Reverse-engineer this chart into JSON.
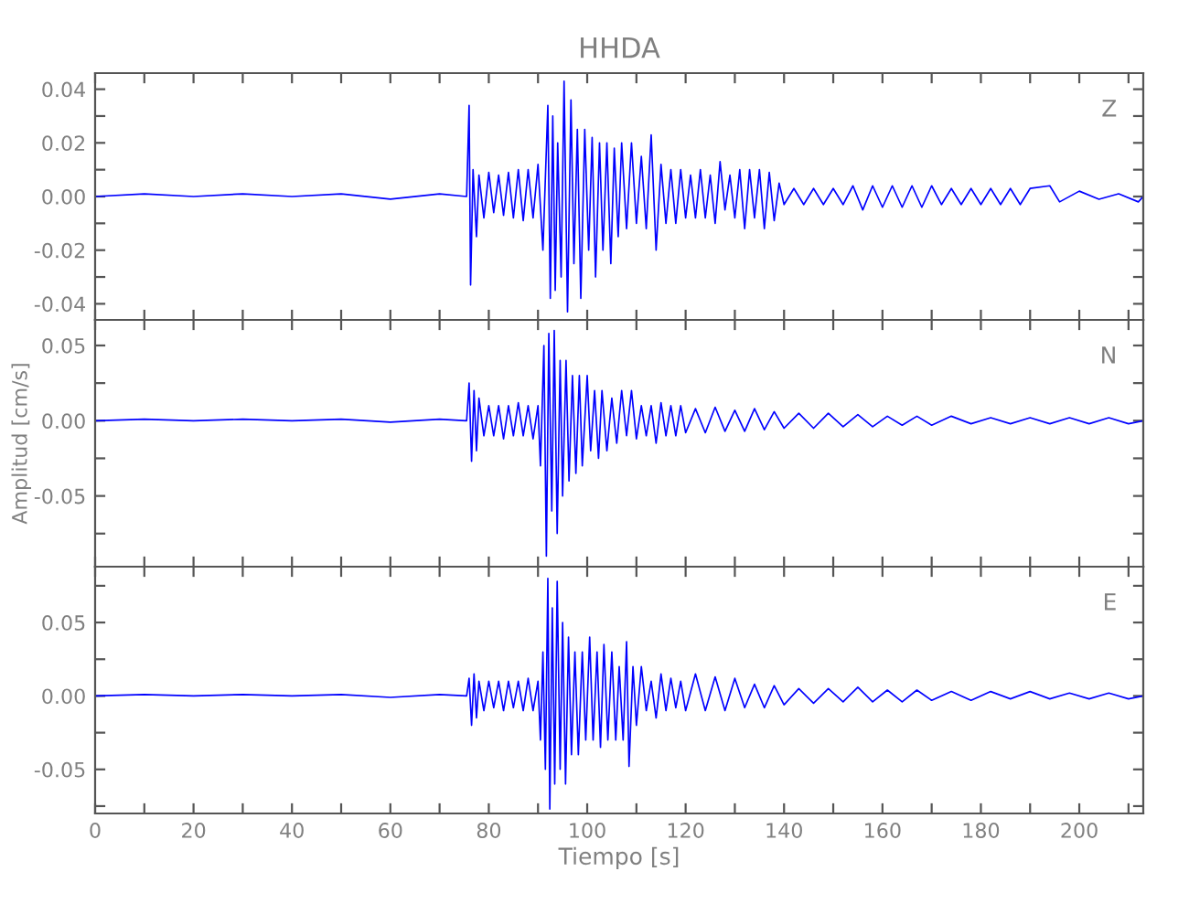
{
  "chart_data": [
    {
      "type": "line",
      "title": "HHDA",
      "tick_labels": "y",
      "grid": false,
      "legend": false,
      "marker": "none",
      "line_style": "solid",
      "xlim": [
        0,
        213
      ],
      "xticks": [
        0,
        {
          "value": 10,
          "label": null
        },
        20,
        {
          "value": 30,
          "label": null
        },
        40,
        {
          "value": 50,
          "label": null
        },
        60,
        {
          "value": 70,
          "label": null
        },
        80,
        {
          "value": 90,
          "label": null
        },
        100,
        {
          "value": 110,
          "label": null
        },
        120,
        {
          "value": 130,
          "label": null
        },
        140,
        {
          "value": 150,
          "label": null
        },
        160,
        {
          "value": 170,
          "label": null
        },
        180,
        {
          "value": 190,
          "label": null
        },
        200,
        {
          "value": 210,
          "label": null
        }
      ],
      "ylim": [
        -0.046,
        0.046
      ],
      "yticks": [
        {
          "value": -0.04,
          "label": "-0.04"
        },
        {
          "value": -0.03,
          "label": null
        },
        {
          "value": -0.02,
          "label": "-0.02"
        },
        {
          "value": -0.01,
          "label": null
        },
        {
          "value": 0,
          "label": "0.00"
        },
        {
          "value": 0.01,
          "label": null
        },
        {
          "value": 0.02,
          "label": "0.02"
        },
        {
          "value": 0.03,
          "label": null
        },
        {
          "value": 0.04,
          "label": "0.04"
        }
      ],
      "series": [
        {
          "name": "Z",
          "color": "#0000ff",
          "x": [
            0,
            10,
            20,
            30,
            40,
            50,
            60,
            70,
            75.5,
            76,
            76.3,
            76.8,
            77.5,
            78,
            79,
            80,
            81,
            82,
            83,
            84,
            85,
            86,
            87,
            88,
            89,
            90,
            91,
            92,
            92.5,
            93,
            93.5,
            94,
            94.7,
            95.3,
            96,
            96.7,
            97.3,
            98,
            98.7,
            99.5,
            100.3,
            101,
            101.7,
            102.5,
            103.2,
            104,
            104.8,
            105.5,
            106.3,
            107,
            108,
            109,
            110,
            111,
            112,
            113,
            114,
            115,
            116,
            117,
            118,
            119,
            120,
            121,
            122,
            123,
            124,
            125,
            126,
            127,
            128,
            129,
            130,
            131,
            132,
            133,
            134,
            135,
            136,
            137,
            138,
            139,
            140,
            142,
            144,
            146,
            148,
            150,
            152,
            154,
            156,
            158,
            160,
            162,
            164,
            166,
            168,
            170,
            172,
            174,
            176,
            178,
            180,
            182,
            184,
            186,
            188,
            190,
            194,
            196,
            200,
            204,
            208,
            212,
            213
          ],
          "values": [
            0,
            0.001,
            0,
            0.001,
            0,
            0.001,
            -0.001,
            0.001,
            0,
            0.034,
            -0.033,
            0.01,
            -0.015,
            0.008,
            -0.008,
            0.009,
            -0.006,
            0.008,
            -0.007,
            0.009,
            -0.008,
            0.01,
            -0.009,
            0.01,
            -0.008,
            0.012,
            -0.02,
            0.034,
            -0.038,
            0.03,
            -0.035,
            0.02,
            -0.03,
            0.043,
            -0.043,
            0.036,
            -0.025,
            0.025,
            -0.038,
            0.025,
            -0.02,
            0.022,
            -0.03,
            0.02,
            -0.02,
            0.02,
            -0.025,
            0.018,
            -0.015,
            0.02,
            -0.012,
            0.02,
            -0.01,
            0.015,
            -0.012,
            0.023,
            -0.02,
            0.012,
            -0.01,
            0.01,
            -0.01,
            0.01,
            -0.008,
            0.008,
            -0.008,
            0.01,
            -0.008,
            0.008,
            -0.01,
            0.013,
            -0.005,
            0.008,
            -0.008,
            0.01,
            -0.012,
            0.01,
            -0.008,
            0.01,
            -0.012,
            0.009,
            -0.009,
            0.005,
            -0.003,
            0.003,
            -0.003,
            0.003,
            -0.003,
            0.003,
            -0.003,
            0.004,
            -0.005,
            0.004,
            -0.004,
            0.004,
            -0.004,
            0.004,
            -0.004,
            0.004,
            -0.003,
            0.003,
            -0.003,
            0.003,
            -0.003,
            0.003,
            -0.003,
            0.003,
            -0.003,
            0.003,
            0.004,
            -0.002,
            0.002,
            -0.001,
            0.001,
            -0.002,
            0
          ]
        }
      ]
    },
    {
      "type": "line",
      "ylabel": "Amplitud [cm/s]",
      "tick_labels": "y",
      "grid": false,
      "legend": false,
      "marker": "none",
      "line_style": "solid",
      "xlim": [
        0,
        213
      ],
      "xticks": [
        0,
        {
          "value": 10,
          "label": null
        },
        20,
        {
          "value": 30,
          "label": null
        },
        40,
        {
          "value": 50,
          "label": null
        },
        60,
        {
          "value": 70,
          "label": null
        },
        80,
        {
          "value": 90,
          "label": null
        },
        100,
        {
          "value": 110,
          "label": null
        },
        120,
        {
          "value": 130,
          "label": null
        },
        140,
        {
          "value": 150,
          "label": null
        },
        160,
        {
          "value": 170,
          "label": null
        },
        180,
        {
          "value": 190,
          "label": null
        },
        200,
        {
          "value": 210,
          "label": null
        }
      ],
      "ylim": [
        -0.097,
        0.067
      ],
      "yticks": [
        {
          "value": -0.075,
          "label": null
        },
        {
          "value": -0.05,
          "label": "-0.05"
        },
        {
          "value": -0.025,
          "label": null
        },
        {
          "value": 0,
          "label": "0.00"
        },
        {
          "value": 0.025,
          "label": null
        },
        {
          "value": 0.05,
          "label": "0.05"
        }
      ],
      "series": [
        {
          "name": "N",
          "color": "#0000ff",
          "x": [
            0,
            10,
            20,
            30,
            40,
            50,
            60,
            70,
            75.5,
            76,
            76.5,
            77,
            77.5,
            78,
            79,
            80,
            81,
            82,
            83,
            84,
            85,
            86,
            87,
            88,
            89,
            90,
            90.5,
            91.2,
            91.7,
            92.2,
            92.8,
            93.3,
            93.9,
            94.5,
            95,
            95.7,
            96.3,
            97,
            97.7,
            98.4,
            99,
            100,
            100.7,
            101.5,
            102.3,
            103,
            104,
            105,
            106,
            107,
            108,
            109,
            110,
            111,
            112,
            113,
            114,
            115,
            116,
            117,
            118,
            119,
            120,
            122,
            124,
            126,
            128,
            130,
            132,
            134,
            136,
            138,
            140,
            143,
            146,
            149,
            152,
            155,
            158,
            161,
            164,
            167,
            170,
            174,
            178,
            182,
            186,
            190,
            194,
            198,
            202,
            206,
            210,
            213
          ],
          "values": [
            0,
            0.001,
            0,
            0.001,
            0,
            0.001,
            -0.001,
            0.001,
            0,
            0.025,
            -0.027,
            0.02,
            -0.02,
            0.015,
            -0.01,
            0.01,
            -0.01,
            0.01,
            -0.012,
            0.01,
            -0.01,
            0.012,
            -0.01,
            0.01,
            -0.012,
            0.01,
            -0.03,
            0.05,
            -0.09,
            0.058,
            -0.06,
            0.06,
            -0.075,
            0.04,
            -0.05,
            0.04,
            -0.04,
            0.03,
            -0.035,
            0.03,
            -0.03,
            0.03,
            -0.02,
            0.02,
            -0.025,
            0.02,
            -0.02,
            0.015,
            -0.015,
            0.02,
            -0.01,
            0.02,
            -0.012,
            0.01,
            -0.01,
            0.01,
            -0.015,
            0.012,
            -0.01,
            0.01,
            -0.01,
            0.01,
            -0.008,
            0.008,
            -0.008,
            0.009,
            -0.007,
            0.007,
            -0.007,
            0.008,
            -0.006,
            0.006,
            -0.005,
            0.005,
            -0.005,
            0.005,
            -0.004,
            0.004,
            -0.004,
            0.003,
            -0.003,
            0.003,
            -0.003,
            0.003,
            -0.002,
            0.002,
            -0.002,
            0.002,
            -0.002,
            0.002,
            -0.002,
            0.002,
            -0.002,
            0
          ]
        }
      ]
    },
    {
      "type": "line",
      "xlabel": "Tiempo [s]",
      "grid": false,
      "legend": false,
      "marker": "none",
      "line_style": "solid",
      "xlim": [
        0,
        213
      ],
      "xticks": [
        0,
        {
          "value": 10,
          "label": null
        },
        20,
        {
          "value": 30,
          "label": null
        },
        40,
        {
          "value": 50,
          "label": null
        },
        60,
        {
          "value": 70,
          "label": null
        },
        80,
        {
          "value": 90,
          "label": null
        },
        100,
        {
          "value": 110,
          "label": null
        },
        120,
        {
          "value": 130,
          "label": null
        },
        140,
        {
          "value": 150,
          "label": null
        },
        160,
        {
          "value": 170,
          "label": null
        },
        180,
        {
          "value": 190,
          "label": null
        },
        200,
        {
          "value": 210,
          "label": null
        }
      ],
      "ylim": [
        -0.08,
        0.088
      ],
      "yticks": [
        {
          "value": -0.075,
          "label": null
        },
        {
          "value": -0.05,
          "label": "-0.05"
        },
        {
          "value": -0.025,
          "label": null
        },
        {
          "value": 0,
          "label": "0.00"
        },
        {
          "value": 0.025,
          "label": null
        },
        {
          "value": 0.05,
          "label": "0.05"
        },
        {
          "value": 0.075,
          "label": null
        }
      ],
      "series": [
        {
          "name": "E",
          "color": "#0000ff",
          "x": [
            0,
            10,
            20,
            30,
            40,
            50,
            60,
            70,
            75.5,
            76,
            76.5,
            77,
            77.5,
            78,
            79,
            80,
            81,
            82,
            83,
            84,
            85,
            86,
            87,
            88,
            89,
            90,
            90.5,
            91,
            91.5,
            92,
            92.4,
            92.9,
            93.4,
            93.9,
            94.5,
            95,
            95.6,
            96.2,
            96.8,
            97.5,
            98.2,
            99,
            99.7,
            100.5,
            101.2,
            102,
            102.7,
            103.4,
            104.2,
            105,
            105.8,
            106.5,
            107.3,
            108,
            108.5,
            109.3,
            110,
            111,
            112,
            113,
            114,
            115,
            116,
            117,
            118,
            119,
            120,
            122,
            124,
            126,
            128,
            130,
            132,
            134,
            136,
            138,
            140,
            143,
            146,
            149,
            152,
            155,
            158,
            161,
            164,
            167,
            170,
            174,
            178,
            182,
            186,
            190,
            194,
            198,
            202,
            206,
            210,
            213
          ],
          "values": [
            0,
            0.001,
            0,
            0.001,
            0,
            0.001,
            -0.001,
            0.001,
            0,
            0.012,
            -0.02,
            0.015,
            -0.015,
            0.01,
            -0.01,
            0.01,
            -0.008,
            0.01,
            -0.01,
            0.01,
            -0.008,
            0.01,
            -0.01,
            0.012,
            -0.01,
            0.01,
            -0.03,
            0.03,
            -0.05,
            0.08,
            -0.077,
            0.06,
            -0.06,
            0.078,
            -0.05,
            0.05,
            -0.06,
            0.04,
            -0.04,
            0.03,
            -0.04,
            0.03,
            -0.03,
            0.04,
            -0.03,
            0.03,
            -0.035,
            0.035,
            -0.03,
            0.03,
            -0.03,
            0.02,
            -0.03,
            0.037,
            -0.048,
            0.02,
            -0.02,
            0.02,
            -0.01,
            0.01,
            -0.015,
            0.015,
            -0.01,
            0.012,
            -0.008,
            0.01,
            -0.01,
            0.015,
            -0.01,
            0.013,
            -0.01,
            0.012,
            -0.008,
            0.008,
            -0.008,
            0.007,
            -0.006,
            0.005,
            -0.005,
            0.005,
            -0.004,
            0.006,
            -0.004,
            0.004,
            -0.004,
            0.004,
            -0.003,
            0.003,
            -0.003,
            0.003,
            -0.002,
            0.003,
            -0.002,
            0.002,
            -0.002,
            0.002,
            -0.002,
            0
          ]
        }
      ]
    }
  ]
}
